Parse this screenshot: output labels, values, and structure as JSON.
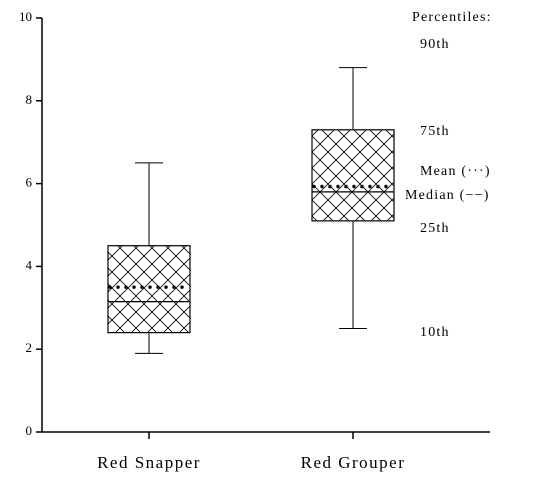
{
  "chart_data": {
    "type": "box",
    "categories": [
      "Red Snapper",
      "Red Grouper"
    ],
    "p10": [
      1.9,
      2.5
    ],
    "q1": [
      2.4,
      5.1
    ],
    "median": [
      3.15,
      5.8
    ],
    "mean": [
      3.5,
      5.93
    ],
    "q3": [
      4.5,
      7.3
    ],
    "p90": [
      6.5,
      8.8
    ],
    "ylim": [
      0,
      10
    ],
    "yticks": [
      0,
      2,
      4,
      6,
      8,
      10
    ],
    "annotations": [
      "Percentiles:",
      "90th",
      "75th",
      "Mean (···)",
      "Median (−−)",
      "25th",
      "10th"
    ]
  }
}
